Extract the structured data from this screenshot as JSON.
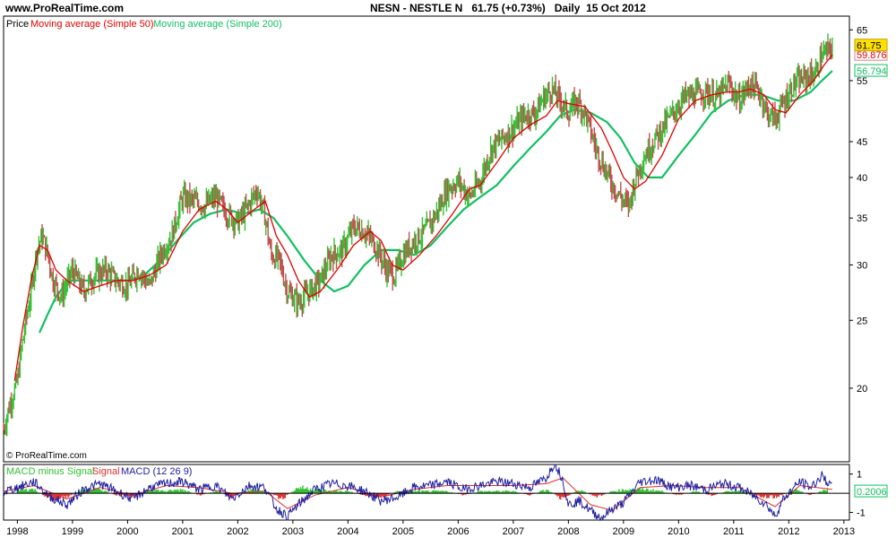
{
  "header": {
    "site": "www.ProRealTime.com",
    "title": "NESN - NESTLE N   61.75 (+0.73%)   Daily  15 Oct 2012"
  },
  "watermark": "© ProRealTime.com",
  "colors": {
    "price_up": "#35c035",
    "price_down": "#c0504d",
    "ma50": "#e00000",
    "ma200": "#10c060",
    "macd": "#2020a0",
    "signal": "#e03030",
    "hist_pos": "#30c030",
    "hist_neg": "#e03030",
    "last_price_bg": "#ffe000"
  },
  "chart_data": [
    {
      "type": "line",
      "panel": "price",
      "scale": "log",
      "legend": {
        "price": "Price",
        "ma50": "Moving average (Simple 50)",
        "ma200": "Moving average (Simple 200)"
      },
      "x_ticks": [
        "1998",
        "1999",
        "2000",
        "2001",
        "2002",
        "2003",
        "2004",
        "2005",
        "2006",
        "2007",
        "2008",
        "2009",
        "2010",
        "2011",
        "2012",
        "2013"
      ],
      "y_ticks": [
        "20",
        "25",
        "30",
        "35",
        "40",
        "45",
        "55",
        "65"
      ],
      "y_tick_values": [
        20,
        25,
        30,
        35,
        40,
        45,
        55,
        65
      ],
      "ylim": [
        15.7,
        68
      ],
      "xlim": [
        1997.75,
        2013.1
      ],
      "last_labels": {
        "price": "61.75",
        "ma50": "59.876",
        "ma200": "56.794"
      },
      "series": [
        {
          "name": "Price",
          "x": [
            1997.75,
            1997.85,
            1998.0,
            1998.1,
            1998.25,
            1998.35,
            1998.45,
            1998.55,
            1998.65,
            1998.8,
            1999.0,
            1999.2,
            1999.4,
            1999.6,
            1999.8,
            2000.0,
            2000.2,
            2000.4,
            2000.6,
            2000.8,
            2001.0,
            2001.2,
            2001.4,
            2001.6,
            2001.8,
            2002.0,
            2002.2,
            2002.35,
            2002.5,
            2002.6,
            2002.75,
            2002.9,
            2003.1,
            2003.3,
            2003.5,
            2003.7,
            2003.9,
            2004.1,
            2004.3,
            2004.5,
            2004.7,
            2004.85,
            2005.0,
            2005.2,
            2005.4,
            2005.6,
            2005.8,
            2006.0,
            2006.2,
            2006.4,
            2006.6,
            2006.8,
            2007.0,
            2007.2,
            2007.4,
            2007.55,
            2007.7,
            2007.85,
            2008.0,
            2008.15,
            2008.3,
            2008.5,
            2008.7,
            2008.85,
            2009.0,
            2009.1,
            2009.2,
            2009.35,
            2009.5,
            2009.7,
            2009.9,
            2010.1,
            2010.3,
            2010.5,
            2010.7,
            2010.9,
            2011.1,
            2011.3,
            2011.5,
            2011.6,
            2011.75,
            2011.9,
            2012.1,
            2012.3,
            2012.5,
            2012.6,
            2012.7,
            2012.79
          ],
          "values": [
            17.5,
            18.8,
            20.5,
            23.5,
            27.5,
            31.5,
            33.0,
            31.0,
            28.5,
            27.0,
            29.5,
            27.5,
            29.0,
            29.5,
            28.5,
            28.0,
            29.5,
            28.0,
            31.0,
            33.0,
            37.5,
            37.0,
            36.5,
            37.5,
            35.5,
            34.5,
            36.5,
            38.5,
            35.0,
            31.0,
            30.5,
            27.5,
            26.5,
            27.5,
            28.5,
            31.0,
            31.5,
            34.0,
            33.5,
            32.0,
            29.5,
            29.0,
            31.0,
            32.5,
            33.5,
            35.5,
            38.5,
            39.5,
            37.5,
            39.5,
            44.0,
            45.5,
            47.0,
            49.0,
            49.5,
            52.0,
            53.5,
            51.5,
            49.5,
            51.5,
            49.5,
            44.0,
            40.5,
            38.5,
            37.0,
            36.5,
            39.5,
            42.5,
            44.5,
            47.0,
            49.5,
            52.0,
            52.5,
            53.0,
            52.0,
            54.5,
            51.5,
            54.5,
            52.5,
            49.5,
            48.5,
            51.0,
            54.5,
            55.5,
            56.5,
            60.0,
            60.5,
            61.75
          ]
        },
        {
          "name": "Moving average (Simple 50)",
          "x": [
            1997.95,
            1998.1,
            1998.25,
            1998.4,
            1998.55,
            1998.7,
            1998.9,
            1999.2,
            1999.5,
            1999.8,
            2000.1,
            2000.4,
            2000.7,
            2001.0,
            2001.3,
            2001.6,
            2001.8,
            2002.0,
            2002.3,
            2002.5,
            2002.7,
            2002.9,
            2003.1,
            2003.3,
            2003.5,
            2003.8,
            2004.1,
            2004.4,
            2004.6,
            2004.8,
            2005.0,
            2005.3,
            2005.6,
            2005.9,
            2006.2,
            2006.4,
            2006.7,
            2007.0,
            2007.3,
            2007.6,
            2007.8,
            2008.0,
            2008.3,
            2008.6,
            2008.8,
            2009.0,
            2009.2,
            2009.4,
            2009.7,
            2010.0,
            2010.3,
            2010.6,
            2010.9,
            2011.1,
            2011.3,
            2011.55,
            2011.75,
            2011.95,
            2012.2,
            2012.45,
            2012.65,
            2012.79
          ],
          "values": [
            20.5,
            24.5,
            28.5,
            32.0,
            31.5,
            29.5,
            28.5,
            27.5,
            28.0,
            28.5,
            28.5,
            29.0,
            30.0,
            33.5,
            36.0,
            37.0,
            36.0,
            34.5,
            36.0,
            37.0,
            33.0,
            31.0,
            28.5,
            27.0,
            27.5,
            29.5,
            32.0,
            33.5,
            32.5,
            30.0,
            29.5,
            31.0,
            33.0,
            35.5,
            38.5,
            39.0,
            42.0,
            45.5,
            47.5,
            49.0,
            51.5,
            51.0,
            50.5,
            47.0,
            43.5,
            40.0,
            38.5,
            39.5,
            43.0,
            48.5,
            51.5,
            52.5,
            53.0,
            53.0,
            53.5,
            52.5,
            50.0,
            49.5,
            52.5,
            55.0,
            58.0,
            59.876
          ]
        },
        {
          "name": "Moving average (Simple 200)",
          "x": [
            1998.4,
            1998.55,
            1998.7,
            1998.85,
            1999.0,
            1999.2,
            1999.45,
            1999.7,
            2000.0,
            2000.3,
            2000.6,
            2000.9,
            2001.2,
            2001.5,
            2001.8,
            2002.1,
            2002.4,
            2002.65,
            2002.9,
            2003.2,
            2003.5,
            2003.75,
            2004.0,
            2004.3,
            2004.6,
            2004.9,
            2005.2,
            2005.5,
            2005.8,
            2006.1,
            2006.4,
            2006.7,
            2007.0,
            2007.3,
            2007.6,
            2007.85,
            2008.1,
            2008.4,
            2008.7,
            2008.95,
            2009.2,
            2009.45,
            2009.7,
            2010.0,
            2010.3,
            2010.6,
            2010.9,
            2011.2,
            2011.5,
            2011.8,
            2012.1,
            2012.4,
            2012.6,
            2012.79
          ],
          "values": [
            24.0,
            25.5,
            27.0,
            28.0,
            28.5,
            28.5,
            28.5,
            28.5,
            28.5,
            29.0,
            30.5,
            32.5,
            34.5,
            35.5,
            36.0,
            35.5,
            36.0,
            35.0,
            33.0,
            30.5,
            28.5,
            27.5,
            28.0,
            30.0,
            31.5,
            31.5,
            31.0,
            32.0,
            34.0,
            36.0,
            37.5,
            39.0,
            41.5,
            44.0,
            46.5,
            49.0,
            50.0,
            49.5,
            48.0,
            45.5,
            42.0,
            40.0,
            40.0,
            43.0,
            46.0,
            49.5,
            51.5,
            52.5,
            52.5,
            51.5,
            51.5,
            53.0,
            55.0,
            56.794
          ]
        }
      ]
    },
    {
      "type": "line",
      "panel": "indicator",
      "legend": {
        "hist": "MACD minus Signal",
        "signal": "Signal",
        "macd": "MACD (12 26 9)"
      },
      "y_ticks": [
        "1",
        "-1"
      ],
      "y_tick_values": [
        1,
        -1
      ],
      "ylim": [
        -1.4,
        1.5
      ],
      "last_label": "0.2006",
      "series": [
        {
          "name": "MACD (12 26 9)",
          "x": [
            1997.75,
            1998.0,
            1998.3,
            1998.6,
            1998.9,
            1999.2,
            1999.5,
            1999.8,
            2000.1,
            2000.4,
            2000.7,
            2001.0,
            2001.3,
            2001.6,
            2001.9,
            2002.2,
            2002.5,
            2002.7,
            2002.9,
            2003.1,
            2003.4,
            2003.7,
            2004.0,
            2004.3,
            2004.6,
            2004.9,
            2005.2,
            2005.5,
            2005.8,
            2006.1,
            2006.4,
            2006.7,
            2007.0,
            2007.3,
            2007.6,
            2007.75,
            2007.9,
            2008.0,
            2008.2,
            2008.4,
            2008.6,
            2008.8,
            2009.0,
            2009.3,
            2009.6,
            2009.9,
            2010.2,
            2010.5,
            2010.8,
            2011.1,
            2011.4,
            2011.6,
            2011.75,
            2011.9,
            2012.2,
            2012.4,
            2012.6,
            2012.79
          ],
          "values": [
            0.1,
            0.3,
            0.6,
            -0.2,
            -0.6,
            0.2,
            0.5,
            0.1,
            -0.3,
            0.3,
            0.5,
            0.6,
            0.2,
            0.4,
            -0.3,
            0.4,
            0.3,
            -0.8,
            -1.2,
            -0.6,
            0.2,
            0.5,
            0.4,
            0.1,
            -0.4,
            -0.2,
            0.3,
            0.4,
            0.6,
            0.2,
            0.4,
            0.6,
            0.5,
            0.3,
            0.8,
            1.6,
            0.7,
            -0.6,
            -0.4,
            -0.9,
            -1.3,
            -0.8,
            -0.5,
            0.6,
            0.7,
            0.3,
            0.4,
            0.2,
            0.5,
            0.3,
            -0.2,
            -0.6,
            -1.2,
            -0.3,
            0.6,
            0.3,
            0.9,
            0.3
          ]
        },
        {
          "name": "Signal",
          "x": [
            1997.75,
            1998.3,
            1998.9,
            1999.5,
            2000.1,
            2000.7,
            2001.3,
            2001.9,
            2002.5,
            2002.9,
            2003.4,
            2004.0,
            2004.6,
            2005.2,
            2005.8,
            2006.4,
            2007.0,
            2007.6,
            2007.9,
            2008.4,
            2008.8,
            2009.3,
            2009.9,
            2010.5,
            2011.1,
            2011.75,
            2012.2,
            2012.79
          ],
          "values": [
            0.1,
            0.4,
            -0.3,
            0.3,
            -0.1,
            0.4,
            0.3,
            0.0,
            0.1,
            -0.8,
            -0.1,
            0.3,
            -0.2,
            0.2,
            0.4,
            0.4,
            0.4,
            0.5,
            0.8,
            -0.6,
            -0.9,
            0.3,
            0.4,
            0.3,
            0.3,
            -0.7,
            0.4,
            0.2
          ]
        },
        {
          "name": "MACD minus Signal",
          "x": [
            1998.0,
            1998.3,
            1998.6,
            1998.9,
            1999.2,
            1999.5,
            1999.8,
            2000.1,
            2000.4,
            2000.7,
            2001.0,
            2001.3,
            2001.6,
            2001.9,
            2002.2,
            2002.5,
            2002.8,
            2003.1,
            2003.4,
            2003.7,
            2004.0,
            2004.3,
            2004.6,
            2004.9,
            2005.2,
            2005.5,
            2005.8,
            2006.1,
            2006.4,
            2006.7,
            2007.0,
            2007.3,
            2007.6,
            2007.9,
            2008.2,
            2008.5,
            2008.8,
            2009.1,
            2009.4,
            2009.7,
            2010.0,
            2010.3,
            2010.6,
            2010.9,
            2011.2,
            2011.5,
            2011.8,
            2012.1,
            2012.4,
            2012.7
          ],
          "values": [
            0.2,
            0.2,
            -0.3,
            -0.2,
            0.2,
            0.2,
            -0.1,
            -0.2,
            0.2,
            0.1,
            0.2,
            -0.1,
            0.1,
            -0.2,
            0.2,
            0.1,
            -0.3,
            0.3,
            0.2,
            0.1,
            0.1,
            -0.1,
            -0.2,
            0.1,
            0.1,
            0.1,
            0.1,
            -0.1,
            0.1,
            0.1,
            0.1,
            -0.1,
            0.2,
            -0.3,
            0.2,
            -0.2,
            0.1,
            0.2,
            0.2,
            0.1,
            -0.1,
            0.1,
            -0.1,
            0.1,
            0.1,
            -0.2,
            -0.2,
            0.2,
            -0.1,
            0.2
          ]
        }
      ]
    }
  ]
}
